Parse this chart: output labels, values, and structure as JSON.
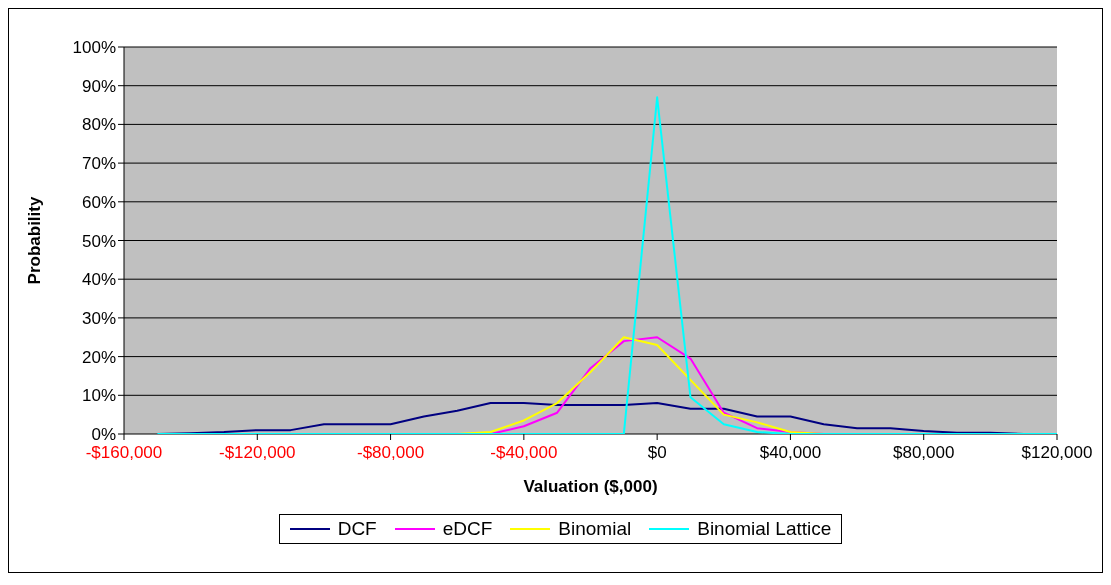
{
  "chart_data": {
    "type": "line",
    "xlabel": "Valuation ($,000)",
    "ylabel": "Probability",
    "x": [
      -150000,
      -140000,
      -130000,
      -120000,
      -110000,
      -100000,
      -90000,
      -80000,
      -70000,
      -60000,
      -50000,
      -40000,
      -30000,
      -20000,
      -10000,
      0,
      10000,
      20000,
      30000,
      40000,
      50000,
      60000,
      70000,
      80000,
      90000,
      100000,
      110000,
      120000
    ],
    "series": [
      {
        "name": "DCF",
        "color": "#000080",
        "values": [
          0,
          0.2,
          0.5,
          1,
          1,
          2.5,
          2.5,
          2.5,
          4.5,
          6,
          8,
          8,
          7.5,
          7.5,
          7.5,
          8,
          6.5,
          6.5,
          4.5,
          4.5,
          2.5,
          1.5,
          1.5,
          0.8,
          0.3,
          0.3,
          0,
          0
        ]
      },
      {
        "name": "eDCF",
        "color": "#ff00ff",
        "values": [
          null,
          null,
          null,
          null,
          null,
          null,
          null,
          null,
          null,
          null,
          0,
          2,
          5.5,
          17,
          24,
          25,
          19.5,
          5.5,
          1.5,
          0.5,
          0,
          null,
          null,
          null,
          null,
          null,
          null,
          null
        ]
      },
      {
        "name": "Binomial",
        "color": "#ffff00",
        "values": [
          null,
          null,
          null,
          null,
          null,
          null,
          null,
          null,
          null,
          0,
          0.5,
          3.5,
          8,
          16,
          25,
          23,
          14,
          5,
          3,
          0.5,
          0,
          null,
          null,
          null,
          null,
          null,
          null,
          null
        ]
      },
      {
        "name": "Binomial Lattice",
        "color": "#00ffff",
        "values": [
          0,
          0,
          0,
          0,
          0,
          0,
          0,
          0,
          0,
          0,
          0,
          0,
          0,
          0,
          0,
          87,
          9.5,
          2.5,
          0.5,
          0,
          0,
          0,
          0,
          0,
          0,
          0,
          0,
          0
        ]
      }
    ],
    "xlim": [
      -160000,
      120000
    ],
    "xticks": [
      {
        "value": -160000,
        "label": "-$160,000"
      },
      {
        "value": -120000,
        "label": "-$120,000"
      },
      {
        "value": -80000,
        "label": "-$80,000"
      },
      {
        "value": -40000,
        "label": "-$40,000"
      },
      {
        "value": 0,
        "label": "$0"
      },
      {
        "value": 40000,
        "label": "$40,000"
      },
      {
        "value": 80000,
        "label": "$80,000"
      },
      {
        "value": 120000,
        "label": "$120,000"
      }
    ],
    "ylim": [
      0,
      100
    ],
    "yticks": [
      {
        "value": 0,
        "label": "0%"
      },
      {
        "value": 10,
        "label": "10%"
      },
      {
        "value": 20,
        "label": "20%"
      },
      {
        "value": 30,
        "label": "30%"
      },
      {
        "value": 40,
        "label": "40%"
      },
      {
        "value": 50,
        "label": "50%"
      },
      {
        "value": 60,
        "label": "60%"
      },
      {
        "value": 70,
        "label": "70%"
      },
      {
        "value": 80,
        "label": "80%"
      },
      {
        "value": 90,
        "label": "90%"
      },
      {
        "value": 100,
        "label": "100%"
      }
    ],
    "grid": "y",
    "legend": "bottom",
    "marker": "none",
    "line_style": "solid"
  }
}
